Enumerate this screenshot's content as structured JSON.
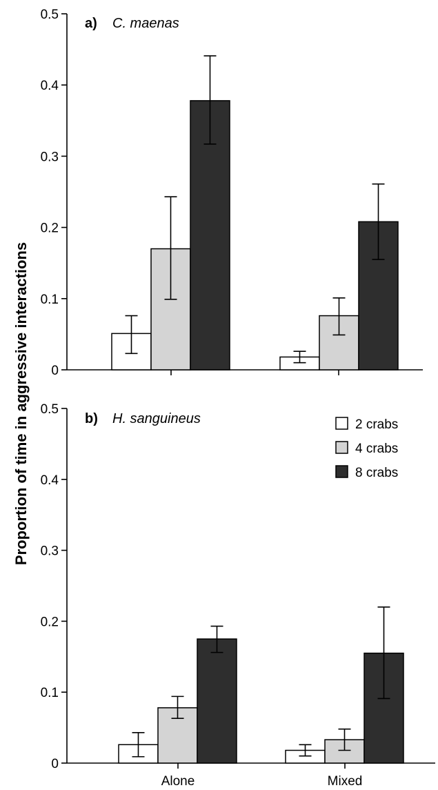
{
  "y_axis_label": "Proportion of time in aggressive interactions",
  "colors": {
    "2 crabs": "#ffffff",
    "4 crabs": "#d4d4d4",
    "8 crabs": "#2e2e2e"
  },
  "legend": {
    "entries": [
      "2 crabs",
      "4 crabs",
      "8 crabs"
    ],
    "placement": "top-right of panel b"
  },
  "panels": [
    {
      "letter": "a)",
      "species": "C. maenas"
    },
    {
      "letter": "b)",
      "species": "H. sanguineus"
    }
  ],
  "chart_data": [
    {
      "type": "bar",
      "panel": "a) C. maenas",
      "categories": [
        "Alone",
        "Mixed"
      ],
      "category_labels_shown": false,
      "ylim": [
        0,
        0.5
      ],
      "yticks": [
        0,
        0.1,
        0.2,
        0.3,
        0.4,
        0.5
      ],
      "ytick_labels": [
        "0",
        "0.1",
        "0.2",
        "0.3",
        "0.4",
        "0.5"
      ],
      "grid": false,
      "series": [
        {
          "name": "2 crabs",
          "values": [
            0.051,
            0.018
          ],
          "err_low": [
            0.023,
            0.01
          ],
          "err_high": [
            0.076,
            0.026
          ]
        },
        {
          "name": "4 crabs",
          "values": [
            0.17,
            0.076
          ],
          "err_low": [
            0.099,
            0.049
          ],
          "err_high": [
            0.243,
            0.101
          ]
        },
        {
          "name": "8 crabs",
          "values": [
            0.378,
            0.208
          ],
          "err_low": [
            0.317,
            0.155
          ],
          "err_high": [
            0.441,
            0.261
          ]
        }
      ]
    },
    {
      "type": "bar",
      "panel": "b) H. sanguineus",
      "categories": [
        "Alone",
        "Mixed"
      ],
      "category_labels_shown": true,
      "ylim": [
        0,
        0.5
      ],
      "yticks": [
        0,
        0.1,
        0.2,
        0.3,
        0.4,
        0.5
      ],
      "ytick_labels": [
        "0",
        "0.1",
        "0.2",
        "0.3",
        "0.4",
        "0.5"
      ],
      "grid": false,
      "series": [
        {
          "name": "2 crabs",
          "values": [
            0.026,
            0.018
          ],
          "err_low": [
            0.009,
            0.01
          ],
          "err_high": [
            0.043,
            0.026
          ]
        },
        {
          "name": "4 crabs",
          "values": [
            0.078,
            0.033
          ],
          "err_low": [
            0.063,
            0.018
          ],
          "err_high": [
            0.094,
            0.048
          ]
        },
        {
          "name": "8 crabs",
          "values": [
            0.175,
            0.155
          ],
          "err_low": [
            0.156,
            0.091
          ],
          "err_high": [
            0.193,
            0.22
          ]
        }
      ]
    }
  ]
}
